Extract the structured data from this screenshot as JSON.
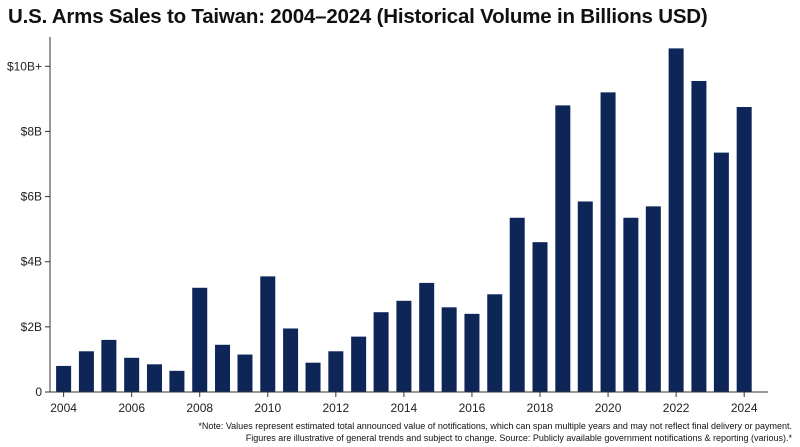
{
  "chart_data": {
    "type": "bar",
    "title": "U.S. Arms Sales to Taiwan: 2004–2024 (Historical Volume in Billions USD)",
    "xlabel": "",
    "ylabel": "",
    "ylim": [
      0,
      10.9
    ],
    "y_ticks": [
      0,
      2,
      4,
      6,
      8,
      10
    ],
    "y_tick_labels": [
      "0",
      "$2B",
      "$4B",
      "$6B",
      "$8B",
      "$10B+"
    ],
    "x_tick_labels": [
      "2004",
      "2006",
      "2008",
      "2010",
      "2012",
      "2014",
      "2016",
      "2018",
      "2020",
      "2022",
      "2024"
    ],
    "x_range": [
      2003.6,
      2024.7
    ],
    "bar_color": "#0d2557",
    "grid": false,
    "x": [
      2004,
      2004.67,
      2005.33,
      2006,
      2006.67,
      2007.33,
      2008,
      2008.67,
      2009.33,
      2010,
      2010.67,
      2011.33,
      2012,
      2012.67,
      2013.33,
      2014,
      2014.67,
      2015.33,
      2016,
      2016.67,
      2017.33,
      2018,
      2018.67,
      2019.33,
      2020,
      2020.67,
      2021.33,
      2022,
      2022.67,
      2023.33,
      2024
    ],
    "values": [
      0.8,
      1.25,
      1.6,
      1.05,
      0.85,
      0.65,
      3.2,
      1.45,
      1.15,
      3.55,
      1.95,
      0.9,
      1.25,
      1.7,
      2.45,
      2.8,
      3.35,
      2.6,
      2.4,
      3.0,
      5.35,
      4.6,
      8.8,
      5.85,
      9.2,
      5.35,
      5.7,
      10.55,
      9.55,
      7.35,
      8.75
    ]
  },
  "footnote": {
    "line1": "*Note: Values represent estimated total announced value of notifications, which can span multiple years and may not reflect final delivery or payment.",
    "line2": "Figures are illustrative of general trends and subject to change. Source: Publicly available government notifications & reporting (various).*"
  }
}
